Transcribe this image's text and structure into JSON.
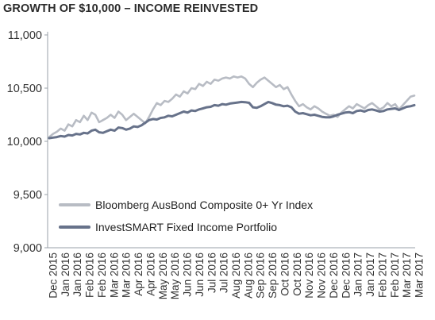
{
  "chart_data": {
    "type": "line",
    "title": "GROWTH OF $10,000 – INCOME REINVESTED",
    "xlabel": "",
    "ylabel": "",
    "ylim": [
      9000,
      11000
    ],
    "yticks": [
      9000,
      9500,
      10000,
      10500,
      11000
    ],
    "ytick_labels": [
      "9,000",
      "9,500",
      "10,000",
      "10,500",
      "11,000"
    ],
    "grid": false,
    "legend_position": "bottom-left",
    "x_tick_labels": [
      "Dec 2015",
      "Jan 2016",
      "Jan 2016",
      "Feb 2016",
      "Feb 2016",
      "Mar 2016",
      "Mar 2016",
      "Apr 2016",
      "Apr 2016",
      "May 2016",
      "May 2016",
      "Jun 2016",
      "Jun 2016",
      "Jul 2016",
      "Jul 2016",
      "Aug 2016",
      "Aug 2016",
      "Sep 2016",
      "Sep 2016",
      "Oct 2016",
      "Oct 2016",
      "Nov 2016",
      "Nov 2016",
      "Dec 2016",
      "Dec 2016",
      "Jan 2017",
      "Jan 2017",
      "Feb 2017",
      "Feb 2017",
      "Mar 2017",
      "Mar 2017"
    ],
    "series": [
      {
        "name": "Bloomberg AusBond Composite 0+ Yr Index",
        "color": "#b8bcc4",
        "values": [
          10040,
          10070,
          10090,
          10120,
          10100,
          10160,
          10140,
          10200,
          10180,
          10240,
          10200,
          10270,
          10250,
          10180,
          10200,
          10220,
          10250,
          10220,
          10280,
          10250,
          10200,
          10230,
          10260,
          10230,
          10200,
          10170,
          10230,
          10300,
          10360,
          10340,
          10380,
          10370,
          10400,
          10440,
          10420,
          10470,
          10450,
          10500,
          10490,
          10540,
          10520,
          10560,
          10540,
          10580,
          10570,
          10590,
          10600,
          10590,
          10610,
          10600,
          10610,
          10590,
          10540,
          10510,
          10550,
          10580,
          10600,
          10570,
          10540,
          10510,
          10530,
          10490,
          10510,
          10440,
          10380,
          10330,
          10350,
          10320,
          10300,
          10330,
          10310,
          10280,
          10260,
          10240,
          10250,
          10230,
          10270,
          10300,
          10330,
          10310,
          10350,
          10330,
          10310,
          10340,
          10360,
          10330,
          10300,
          10320,
          10360,
          10330,
          10350,
          10300,
          10340,
          10380,
          10420,
          10430
        ]
      },
      {
        "name": "InvestSMART Fixed Income Portfolio",
        "color": "#67728a",
        "values": [
          10030,
          10035,
          10040,
          10050,
          10045,
          10060,
          10055,
          10070,
          10065,
          10080,
          10075,
          10100,
          10110,
          10085,
          10080,
          10095,
          10110,
          10100,
          10130,
          10125,
          10110,
          10120,
          10140,
          10135,
          10150,
          10175,
          10200,
          10210,
          10205,
          10220,
          10225,
          10240,
          10235,
          10250,
          10265,
          10280,
          10270,
          10290,
          10285,
          10300,
          10310,
          10320,
          10325,
          10340,
          10335,
          10350,
          10345,
          10355,
          10360,
          10365,
          10370,
          10368,
          10362,
          10320,
          10315,
          10330,
          10350,
          10370,
          10360,
          10345,
          10340,
          10330,
          10335,
          10320,
          10280,
          10260,
          10265,
          10255,
          10245,
          10250,
          10240,
          10230,
          10225,
          10225,
          10235,
          10250,
          10260,
          10270,
          10275,
          10265,
          10285,
          10290,
          10280,
          10295,
          10300,
          10290,
          10280,
          10285,
          10300,
          10305,
          10310,
          10295,
          10310,
          10325,
          10330,
          10340
        ]
      }
    ]
  }
}
